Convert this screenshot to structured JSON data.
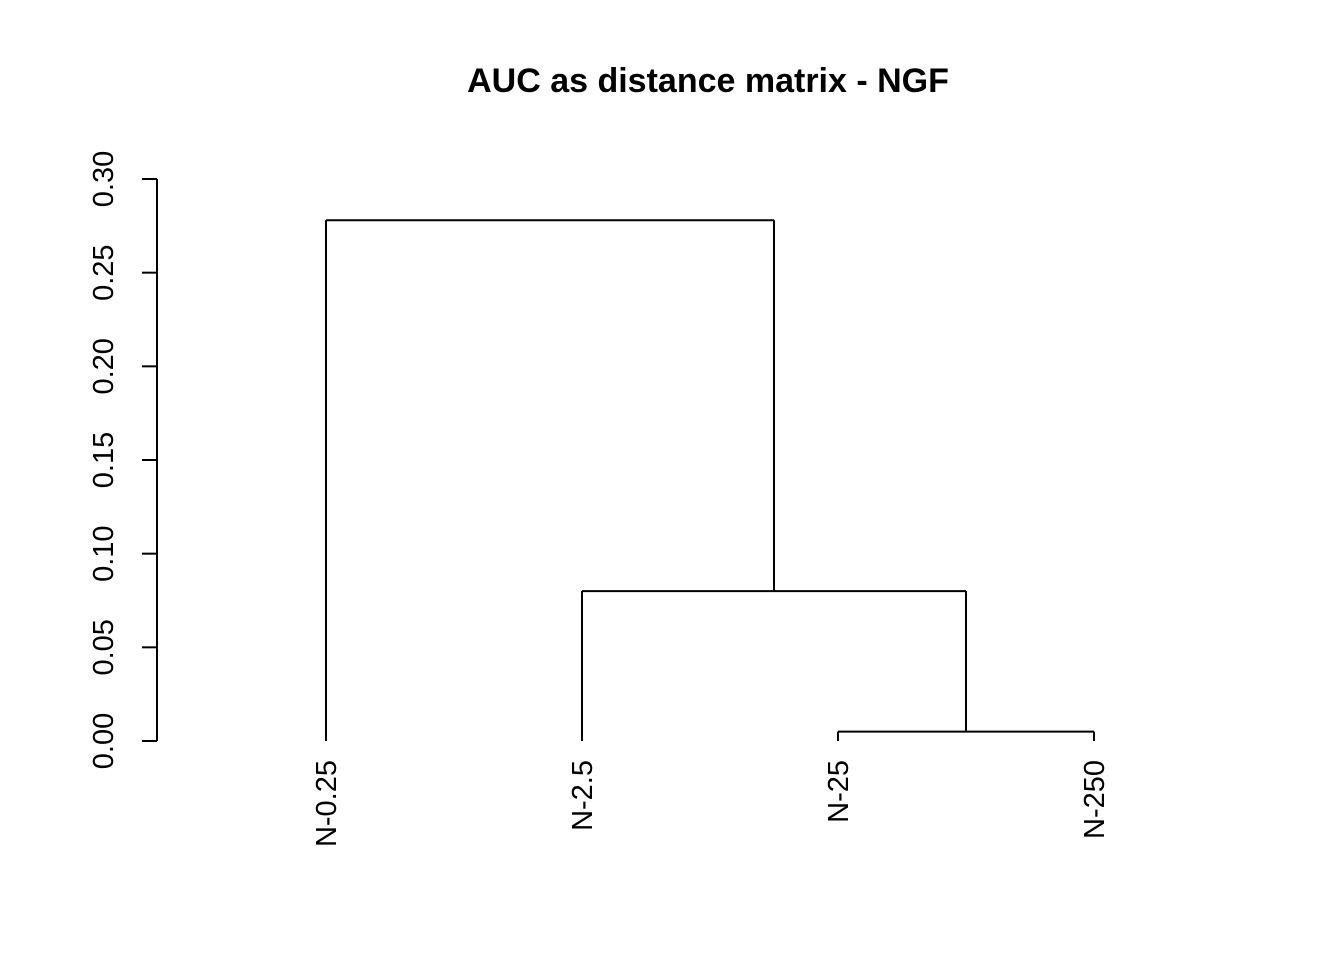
{
  "chart_data": {
    "type": "dendrogram",
    "title": "AUC as distance matrix - NGF",
    "xlabel": "",
    "ylabel": "",
    "ylim": [
      0,
      0.3
    ],
    "y_ticks": [
      "0.00",
      "0.05",
      "0.10",
      "0.15",
      "0.20",
      "0.25",
      "0.30"
    ],
    "y_tick_values": [
      0,
      0.05,
      0.1,
      0.15,
      0.2,
      0.25,
      0.3
    ],
    "leaves": [
      "N-0.25",
      "N-2.5",
      "N-25",
      "N-250"
    ],
    "merges": [
      {
        "left": "N-25",
        "right": "N-250",
        "height": 0.005
      },
      {
        "left": "N-2.5",
        "right": "merge-1",
        "height": 0.08
      },
      {
        "left": "N-0.25",
        "right": "merge-2",
        "height": 0.278
      }
    ],
    "grid": false,
    "legend": "none"
  }
}
